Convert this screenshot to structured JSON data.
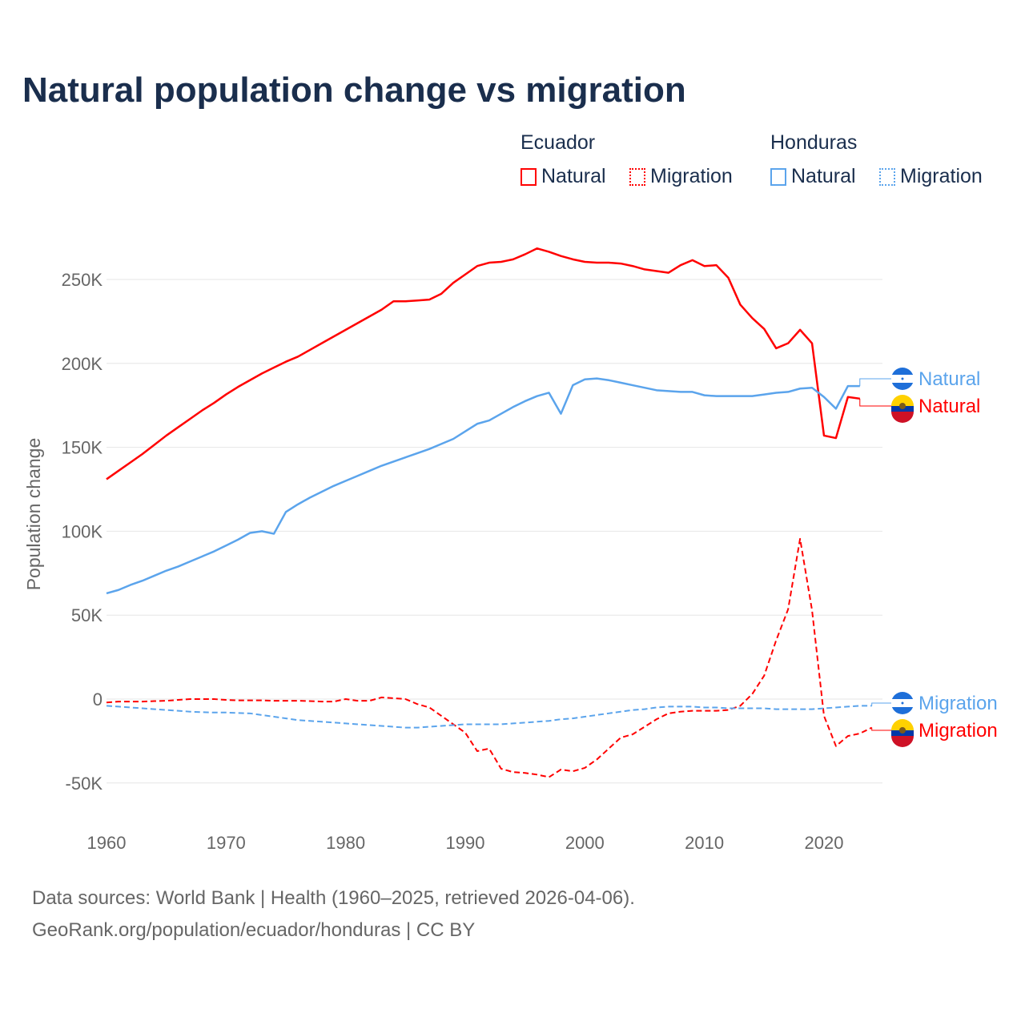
{
  "title": "Natural population change vs migration",
  "legend": {
    "groups": [
      {
        "name": "Ecuador",
        "natural": "Natural",
        "migration": "Migration",
        "color": "#ff0000"
      },
      {
        "name": "Honduras",
        "natural": "Natural",
        "migration": "Migration",
        "color": "#5ba4ec"
      }
    ]
  },
  "footer": {
    "line1": "Data sources: World Bank | Health (1960–2025, retrieved 2026-04-06).",
    "line2": "GeoRank.org/population/ecuador/honduras | CC BY"
  },
  "chart_data": {
    "type": "line",
    "title": "Natural population change vs migration",
    "ylabel": "Population change",
    "xlabel": "",
    "xlim": [
      1960,
      2025
    ],
    "ylim": [
      -65000,
      290000
    ],
    "xticks": [
      1960,
      1970,
      1980,
      1990,
      2000,
      2010,
      2020
    ],
    "yticks": [
      -50000,
      0,
      50000,
      100000,
      150000,
      200000,
      250000
    ],
    "ytick_labels": [
      "-50K",
      "0",
      "50K",
      "100K",
      "150K",
      "200K",
      "250K"
    ],
    "grid": true,
    "series": [
      {
        "name": "Ecuador Natural",
        "country": "Ecuador",
        "kind": "natural",
        "label": "Natural",
        "color": "#ff0000",
        "dash": false,
        "x0": 1960,
        "values": [
          131,
          136,
          141,
          146,
          151.5,
          157,
          162,
          167,
          172,
          176.5,
          181.5,
          186,
          190,
          194,
          197.5,
          201,
          204,
          208,
          212,
          216,
          220,
          224,
          228,
          232,
          237,
          237,
          237.5,
          238,
          241.5,
          248,
          253,
          258,
          260,
          260.5,
          262,
          265,
          268.5,
          266.5,
          264,
          262,
          260.5,
          260,
          260,
          259.5,
          258,
          256,
          255,
          254,
          258.5,
          261.5,
          258,
          258.5,
          251,
          235,
          227,
          220.5,
          209,
          212,
          220,
          212,
          157,
          155.5,
          180,
          179
        ]
      },
      {
        "name": "Honduras Natural",
        "country": "Honduras",
        "kind": "natural",
        "label": "Natural",
        "color": "#5ba4ec",
        "dash": false,
        "x0": 1960,
        "values": [
          63,
          65,
          68,
          70.5,
          73.5,
          76.5,
          79,
          82,
          85,
          88,
          91.5,
          95,
          99,
          100,
          98.5,
          111.5,
          116,
          120,
          123.5,
          127,
          130,
          133,
          136,
          139,
          141.5,
          144,
          146.5,
          149,
          152,
          155,
          159.5,
          164,
          166,
          170,
          174,
          177.5,
          180.5,
          182.5,
          170,
          187,
          190.5,
          191,
          190,
          188.5,
          187,
          185.5,
          184,
          183.5,
          183,
          183,
          181,
          180.5,
          180.5,
          180.5,
          180.5,
          181.5,
          182.5,
          183,
          185,
          185.5,
          180,
          173,
          186.5,
          186.5
        ]
      },
      {
        "name": "Ecuador Migration",
        "country": "Ecuador",
        "kind": "migration",
        "label": "Migration",
        "color": "#ff0000",
        "dash": true,
        "x0": 1960,
        "values": [
          -2,
          -1.5,
          -1.5,
          -1.5,
          -1.2,
          -1,
          -0.5,
          0,
          0,
          0,
          -0.5,
          -0.8,
          -0.8,
          -0.8,
          -1,
          -1,
          -1,
          -1.2,
          -1.5,
          -1.5,
          0,
          -1,
          -1,
          1,
          0.5,
          0,
          -3,
          -5,
          -10,
          -15,
          -20,
          -31,
          -29.5,
          -41.5,
          -43.5,
          -44,
          -45,
          -46.5,
          -42,
          -43,
          -41,
          -36,
          -29.5,
          -23,
          -21,
          -16.5,
          -12,
          -8.5,
          -7.5,
          -7,
          -7,
          -7,
          -6.5,
          -4,
          3,
          14,
          35,
          53.5,
          95.5,
          53,
          -10,
          -28,
          -22,
          -20.5,
          -17
        ]
      },
      {
        "name": "Honduras Migration",
        "country": "Honduras",
        "kind": "migration",
        "label": "Migration",
        "color": "#5ba4ec",
        "dash": true,
        "x0": 1960,
        "values": [
          -4,
          -4.5,
          -5,
          -5.5,
          -6,
          -6.5,
          -7,
          -7.5,
          -7.8,
          -8,
          -8,
          -8.3,
          -8.5,
          -9.5,
          -10.5,
          -11.5,
          -12.5,
          -13,
          -13.5,
          -14,
          -14.5,
          -15,
          -15.5,
          -16,
          -16.5,
          -17,
          -17,
          -16.5,
          -16,
          -15.5,
          -15,
          -15,
          -15,
          -15,
          -14.5,
          -14,
          -13.5,
          -13,
          -12,
          -11.5,
          -10.5,
          -9.5,
          -8.5,
          -7.5,
          -6.5,
          -6,
          -5,
          -4.5,
          -4.5,
          -4.5,
          -5,
          -5,
          -5.5,
          -5.5,
          -5.5,
          -5.5,
          -6,
          -6,
          -6,
          -6,
          -5.5,
          -5,
          -4.5,
          -4,
          -4
        ]
      }
    ],
    "value_units": "thousands"
  }
}
